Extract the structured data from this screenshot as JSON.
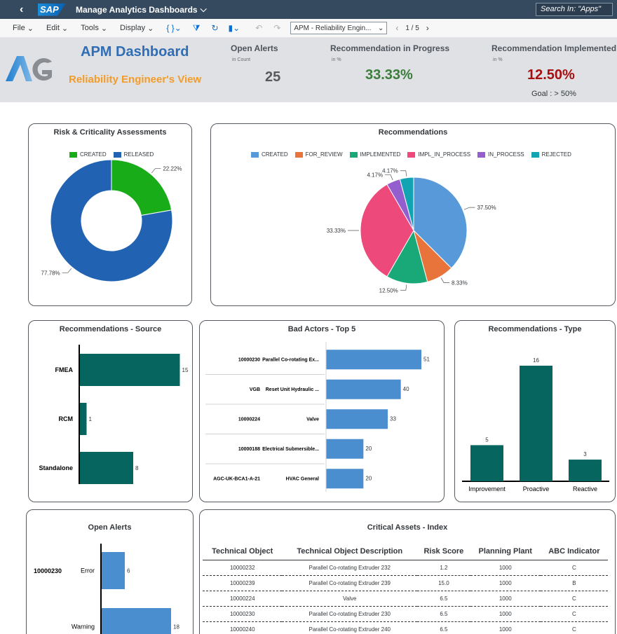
{
  "shell": {
    "app_title": "Manage Analytics Dashboards",
    "logo_text": "SAP",
    "search_placeholder": "Search In: \"Apps\""
  },
  "toolbar": {
    "file": "File",
    "edit": "Edit",
    "tools": "Tools",
    "display": "Display",
    "story_select": "APM - Reliability Engin...",
    "page_indicator": "1 / 5"
  },
  "header": {
    "logo_text": "AG",
    "title": "APM Dashboard",
    "subtitle": "Reliability Engineer's View",
    "kpis": [
      {
        "title": "Open Alerts",
        "unit": "in Count",
        "value": "25",
        "color": "#58595b"
      },
      {
        "title": "Recommendation in Progress",
        "unit": "in %",
        "value": "33.33%",
        "color": "#3b7d3a"
      },
      {
        "title": "Recommendation Implemented",
        "unit": "in %",
        "value": "12.50%",
        "color": "#a60f0f"
      }
    ],
    "goal": "Goal : > 50%"
  },
  "colors": {
    "teal": "#06665f",
    "blue_bar": "#4a8ed0",
    "created_green": "#19ac19",
    "released_blue": "#2163b2"
  },
  "chart_data": [
    {
      "id": "risk",
      "type": "pie",
      "title": "Risk & Criticality Assessments",
      "donut": true,
      "legend": [
        "CREATED",
        "RELEASED"
      ],
      "slices": [
        {
          "label": "CREATED",
          "value": 22.22,
          "display": "22.22%",
          "color": "#19ac19"
        },
        {
          "label": "RELEASED",
          "value": 77.78,
          "display": "77.78%",
          "color": "#2163b2"
        }
      ]
    },
    {
      "id": "recommendations",
      "type": "pie",
      "title": "Recommendations",
      "donut": false,
      "legend": [
        "CREATED",
        "FOR_REVIEW",
        "IMPLEMENTED",
        "IMPL_IN_PROCESS",
        "IN_PROCESS",
        "REJECTED"
      ],
      "slices": [
        {
          "label": "CREATED",
          "value": 37.5,
          "display": "37.50%",
          "color": "#5899da"
        },
        {
          "label": "FOR_REVIEW",
          "value": 8.33,
          "display": "8.33%",
          "color": "#e8743b"
        },
        {
          "label": "IMPLEMENTED",
          "value": 12.5,
          "display": "12.50%",
          "color": "#19a979"
        },
        {
          "label": "IMPL_IN_PROCESS",
          "value": 33.33,
          "display": "33.33%",
          "color": "#ed4a7b"
        },
        {
          "label": "IN_PROCESS",
          "value": 4.17,
          "display": "4.17%",
          "color": "#945ecf"
        },
        {
          "label": "REJECTED",
          "value": 4.17,
          "display": "4.17%",
          "color": "#13a4b4"
        }
      ]
    },
    {
      "id": "source",
      "type": "bar",
      "orientation": "horizontal",
      "title": "Recommendations - Source",
      "categories": [
        "FMEA",
        "RCM",
        "Standalone"
      ],
      "values": [
        15,
        1,
        8
      ],
      "xlim": [
        0,
        18
      ]
    },
    {
      "id": "badactors",
      "type": "bar",
      "orientation": "horizontal",
      "title": "Bad Actors - Top 5",
      "rows": [
        {
          "id": "10000230",
          "desc": "Parallel Co-rotating Ex...",
          "value": 51
        },
        {
          "id": "VGB",
          "desc": "Reset Unit Hydraulic ...",
          "value": 40
        },
        {
          "id": "10000224",
          "desc": "Valve",
          "value": 33
        },
        {
          "id": "10000188",
          "desc": "Electrical Submersible...",
          "value": 20
        },
        {
          "id": "AGC-UK-BCA1-A-21",
          "desc": "HVAC General",
          "value": 20
        }
      ],
      "xlim": [
        0,
        60
      ]
    },
    {
      "id": "rtype",
      "type": "bar",
      "orientation": "vertical",
      "title": "Recommendations - Type",
      "categories": [
        "Improvement",
        "Proactive",
        "Reactive"
      ],
      "values": [
        5,
        16,
        3
      ],
      "ylim": [
        0,
        18
      ]
    },
    {
      "id": "openalerts",
      "type": "bar",
      "orientation": "horizontal",
      "title": "Open Alerts",
      "group": "10000230",
      "categories": [
        "Error",
        "Warning"
      ],
      "values": [
        6,
        18
      ],
      "xlim": [
        0,
        20
      ]
    },
    {
      "id": "critical",
      "type": "table",
      "title": "Critical Assets - Index",
      "columns": [
        "Technical Object",
        "Technical Object Description",
        "Risk Score",
        "Planning Plant",
        "ABC Indicator"
      ],
      "rows": [
        [
          "10000232",
          "Parallel Co-rotating Extruder 232",
          "1.2",
          "1000",
          "C"
        ],
        [
          "10000239",
          "Parallel Co-rotating Extruder 239",
          "15.0",
          "1000",
          "B"
        ],
        [
          "10000224",
          "Valve",
          "6.5",
          "1000",
          "C"
        ],
        [
          "10000230",
          "Parallel Co-rotating Extruder 230",
          "6.5",
          "1000",
          "C"
        ],
        [
          "10000240",
          "Parallel Co-rotating Extruder 240",
          "6.5",
          "1000",
          "C"
        ]
      ]
    }
  ]
}
